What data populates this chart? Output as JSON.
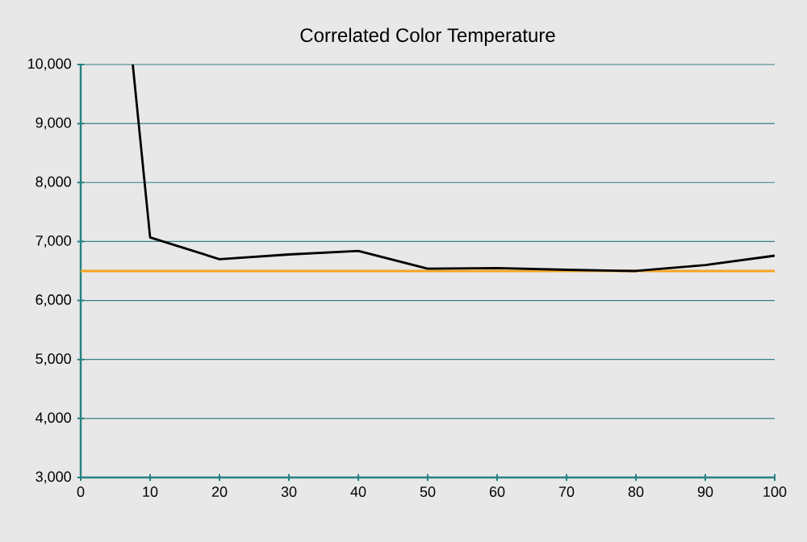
{
  "chart_data": {
    "type": "line",
    "title": "Correlated Color Temperature",
    "x": [
      7.5,
      10,
      20,
      30,
      40,
      50,
      60,
      70,
      80,
      90,
      100
    ],
    "series": [
      {
        "color": "#000000",
        "values": [
          10000,
          7070,
          6700,
          6780,
          6840,
          6540,
          6550,
          6520,
          6500,
          6600,
          6760
        ]
      }
    ],
    "xlim": [
      0,
      100
    ],
    "xticks": [
      0,
      10,
      20,
      30,
      40,
      50,
      60,
      70,
      80,
      90,
      100
    ],
    "ylim": [
      3000,
      10000
    ],
    "yticks": [
      {
        "value": 3000,
        "label": "3,000"
      },
      {
        "value": 4000,
        "label": "4,000"
      },
      {
        "value": 5000,
        "label": "5,000"
      },
      {
        "value": 6000,
        "label": "6,000"
      },
      {
        "value": 7000,
        "label": "7,000"
      },
      {
        "value": 8000,
        "label": "8,000"
      },
      {
        "value": 9000,
        "label": "9,000"
      },
      {
        "value": 10000,
        "label": "10,000"
      }
    ],
    "ref_lines": [
      {
        "axis": "y",
        "value": 6500,
        "color": "#f5a623"
      }
    ],
    "grid": "y",
    "marker": "none",
    "line_style": "solid"
  }
}
